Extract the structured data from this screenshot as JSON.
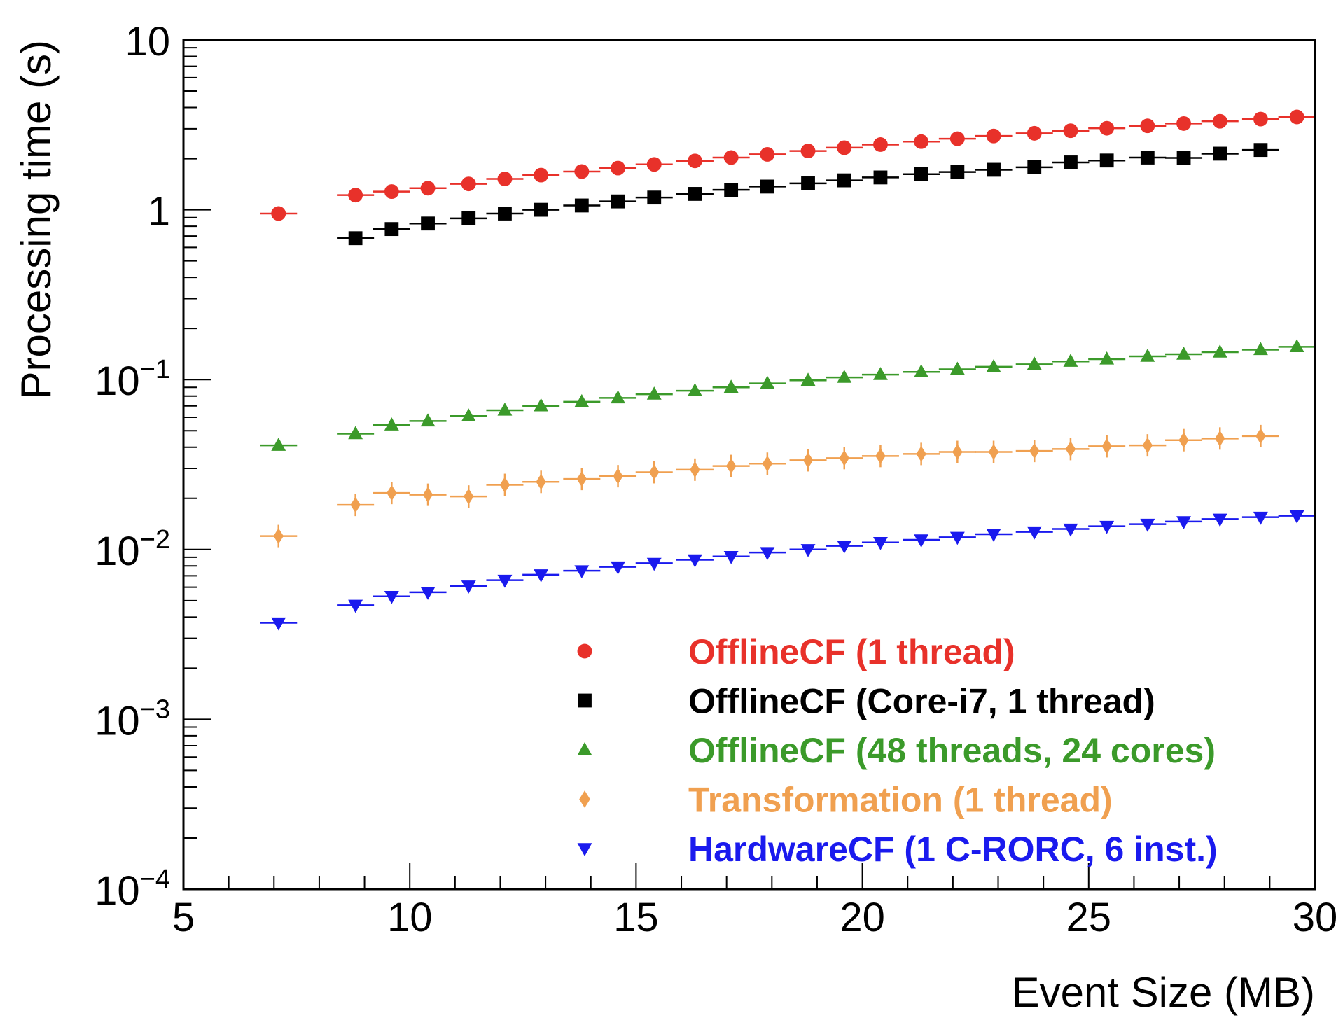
{
  "chart_data": {
    "type": "scatter",
    "title": "",
    "xlabel": "Event Size (MB)",
    "ylabel": "Processing time (s)",
    "xlim": [
      5,
      30
    ],
    "ylim": [
      0.0001,
      10
    ],
    "yscale": "log",
    "grid": false,
    "legend_position": "bottom-right",
    "x_ticks": [
      {
        "value": 5,
        "label": "5"
      },
      {
        "value": 10,
        "label": "10"
      },
      {
        "value": 15,
        "label": "15"
      },
      {
        "value": 20,
        "label": "20"
      },
      {
        "value": 25,
        "label": "25"
      },
      {
        "value": 30,
        "label": "30"
      }
    ],
    "y_ticks": [
      {
        "value": 10,
        "label": "10",
        "base": "10",
        "exp": ""
      },
      {
        "value": 1,
        "label": "1",
        "base": "1",
        "exp": ""
      },
      {
        "value": 0.1,
        "label": "10^-1",
        "base": "10",
        "exp": "−1"
      },
      {
        "value": 0.01,
        "label": "10^-2",
        "base": "10",
        "exp": "−2"
      },
      {
        "value": 0.001,
        "label": "10^-3",
        "base": "10",
        "exp": "−3"
      },
      {
        "value": 0.0001,
        "label": "10^-4",
        "base": "10",
        "exp": "−4"
      }
    ],
    "series": [
      {
        "name": "OfflineCF (1 thread)",
        "color": "#e8312a",
        "marker": "circle",
        "points": [
          [
            7.1,
            0.95
          ],
          [
            8.8,
            1.22
          ],
          [
            9.6,
            1.28
          ],
          [
            10.4,
            1.34
          ],
          [
            11.3,
            1.42
          ],
          [
            12.1,
            1.52
          ],
          [
            12.9,
            1.6
          ],
          [
            13.8,
            1.68
          ],
          [
            14.6,
            1.76
          ],
          [
            15.4,
            1.85
          ],
          [
            16.3,
            1.94
          ],
          [
            17.1,
            2.03
          ],
          [
            17.9,
            2.12
          ],
          [
            18.8,
            2.22
          ],
          [
            19.6,
            2.32
          ],
          [
            20.4,
            2.42
          ],
          [
            21.3,
            2.52
          ],
          [
            22.1,
            2.62
          ],
          [
            22.9,
            2.72
          ],
          [
            23.8,
            2.82
          ],
          [
            24.6,
            2.92
          ],
          [
            25.4,
            3.02
          ],
          [
            26.3,
            3.12
          ],
          [
            27.1,
            3.22
          ],
          [
            27.9,
            3.32
          ],
          [
            28.8,
            3.42
          ],
          [
            29.6,
            3.52
          ]
        ]
      },
      {
        "name": "OfflineCF (Core-i7, 1 thread)",
        "color": "#000000",
        "marker": "square",
        "points": [
          [
            8.8,
            0.68
          ],
          [
            9.6,
            0.77
          ],
          [
            10.4,
            0.83
          ],
          [
            11.3,
            0.89
          ],
          [
            12.1,
            0.95
          ],
          [
            12.9,
            1.0
          ],
          [
            13.8,
            1.06
          ],
          [
            14.6,
            1.12
          ],
          [
            15.4,
            1.18
          ],
          [
            16.3,
            1.24
          ],
          [
            17.1,
            1.31
          ],
          [
            17.9,
            1.37
          ],
          [
            18.8,
            1.43
          ],
          [
            19.6,
            1.49
          ],
          [
            20.4,
            1.55
          ],
          [
            21.3,
            1.62
          ],
          [
            22.1,
            1.67
          ],
          [
            22.9,
            1.72
          ],
          [
            23.8,
            1.78
          ],
          [
            24.6,
            1.9
          ],
          [
            25.4,
            1.95
          ],
          [
            26.3,
            2.03
          ],
          [
            27.1,
            2.02
          ],
          [
            27.9,
            2.14
          ],
          [
            28.8,
            2.25
          ]
        ]
      },
      {
        "name": "OfflineCF (48 threads, 24 cores)",
        "color": "#3b9a2a",
        "marker": "triangle-up",
        "points": [
          [
            7.1,
            0.041
          ],
          [
            8.8,
            0.048
          ],
          [
            9.6,
            0.054
          ],
          [
            10.4,
            0.057
          ],
          [
            11.3,
            0.061
          ],
          [
            12.1,
            0.066
          ],
          [
            12.9,
            0.07
          ],
          [
            13.8,
            0.074
          ],
          [
            14.6,
            0.078
          ],
          [
            15.4,
            0.082
          ],
          [
            16.3,
            0.086
          ],
          [
            17.1,
            0.09
          ],
          [
            17.9,
            0.095
          ],
          [
            18.8,
            0.099
          ],
          [
            19.6,
            0.103
          ],
          [
            20.4,
            0.107
          ],
          [
            21.3,
            0.111
          ],
          [
            22.1,
            0.115
          ],
          [
            22.9,
            0.119
          ],
          [
            23.8,
            0.123
          ],
          [
            24.6,
            0.128
          ],
          [
            25.4,
            0.132
          ],
          [
            26.3,
            0.137
          ],
          [
            27.1,
            0.141
          ],
          [
            27.9,
            0.145
          ],
          [
            28.8,
            0.15
          ],
          [
            29.6,
            0.156
          ]
        ]
      },
      {
        "name": "Transformation (1 thread)",
        "color": "#f0a050",
        "marker": "diamond",
        "points": [
          [
            7.1,
            0.012
          ],
          [
            8.8,
            0.0183
          ],
          [
            9.6,
            0.0215
          ],
          [
            10.4,
            0.021
          ],
          [
            11.3,
            0.0205
          ],
          [
            12.1,
            0.024
          ],
          [
            12.9,
            0.025
          ],
          [
            13.8,
            0.026
          ],
          [
            14.6,
            0.027
          ],
          [
            15.4,
            0.0285
          ],
          [
            16.3,
            0.0295
          ],
          [
            17.1,
            0.031
          ],
          [
            17.9,
            0.032
          ],
          [
            18.8,
            0.0335
          ],
          [
            19.6,
            0.0345
          ],
          [
            20.4,
            0.0355
          ],
          [
            21.3,
            0.0365
          ],
          [
            22.1,
            0.0375
          ],
          [
            22.9,
            0.0375
          ],
          [
            23.8,
            0.038
          ],
          [
            24.6,
            0.039
          ],
          [
            25.4,
            0.0405
          ],
          [
            26.3,
            0.041
          ],
          [
            27.1,
            0.044
          ],
          [
            27.9,
            0.045
          ],
          [
            28.8,
            0.0465
          ]
        ]
      },
      {
        "name": "HardwareCF (1 C-RORC, 6 inst.)",
        "color": "#1a1aee",
        "marker": "triangle-down",
        "points": [
          [
            7.1,
            0.0037
          ],
          [
            8.8,
            0.0047
          ],
          [
            9.6,
            0.0053
          ],
          [
            10.4,
            0.0056
          ],
          [
            11.3,
            0.0061
          ],
          [
            12.1,
            0.0066
          ],
          [
            12.9,
            0.0071
          ],
          [
            13.8,
            0.0075
          ],
          [
            14.6,
            0.0079
          ],
          [
            15.4,
            0.0083
          ],
          [
            16.3,
            0.0087
          ],
          [
            17.1,
            0.0091
          ],
          [
            17.9,
            0.0096
          ],
          [
            18.8,
            0.01
          ],
          [
            19.6,
            0.0105
          ],
          [
            20.4,
            0.011
          ],
          [
            21.3,
            0.0114
          ],
          [
            22.1,
            0.0118
          ],
          [
            22.9,
            0.0123
          ],
          [
            23.8,
            0.0127
          ],
          [
            24.6,
            0.0132
          ],
          [
            25.4,
            0.0137
          ],
          [
            26.3,
            0.0141
          ],
          [
            27.1,
            0.0146
          ],
          [
            27.9,
            0.0151
          ],
          [
            28.8,
            0.0155
          ],
          [
            29.6,
            0.0158
          ]
        ]
      }
    ]
  }
}
